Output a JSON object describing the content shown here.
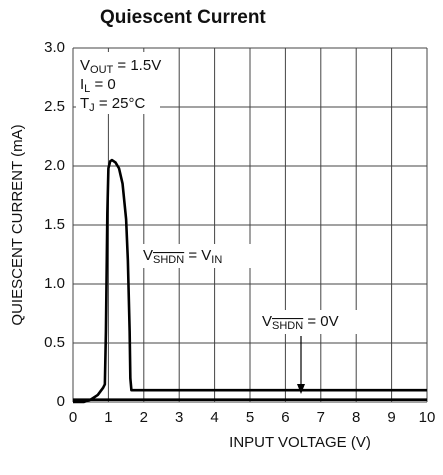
{
  "chart_data": {
    "type": "line",
    "title": "Quiescent Current",
    "xlabel": "INPUT VOLTAGE (V)",
    "ylabel": "QUIESCENT CURRENT (mA)",
    "xlim": [
      0,
      10
    ],
    "ylim": [
      0,
      3
    ],
    "xticks": [
      0,
      1,
      2,
      3,
      4,
      5,
      6,
      7,
      8,
      9,
      10
    ],
    "yticks": [
      0,
      0.5,
      {
        "value": 1,
        "label": "1.0"
      },
      1.5,
      {
        "value": 2,
        "label": "2.0"
      },
      2.5,
      {
        "value": 3,
        "label": "3.0"
      }
    ],
    "grid": true,
    "conditions": [
      [
        "V",
        "OUT",
        " = 1.5V"
      ],
      [
        "I",
        "L",
        " = 0"
      ],
      [
        "T",
        "J",
        " = 25°C"
      ]
    ],
    "series": [
      {
        "label": [
          "V",
          "SHDN",
          " = V",
          "IN"
        ],
        "color": "#000000",
        "x": [
          0,
          0.3,
          0.5,
          0.7,
          0.85,
          0.9,
          0.93,
          0.97,
          1.0,
          1.05,
          1.1,
          1.2,
          1.3,
          1.4,
          1.5,
          1.55,
          1.6,
          1.62,
          1.65,
          2,
          10
        ],
        "values": [
          0,
          0,
          0.02,
          0.06,
          0.12,
          0.15,
          0.6,
          1.6,
          1.98,
          2.04,
          2.05,
          2.03,
          1.98,
          1.85,
          1.55,
          1.2,
          0.6,
          0.2,
          0.1,
          0.1,
          0.1
        ]
      },
      {
        "label": [
          "V",
          "SHDN",
          " = 0V"
        ],
        "color": "#000000",
        "x": [
          0,
          10
        ],
        "values": [
          0.02,
          0.02
        ]
      }
    ]
  }
}
